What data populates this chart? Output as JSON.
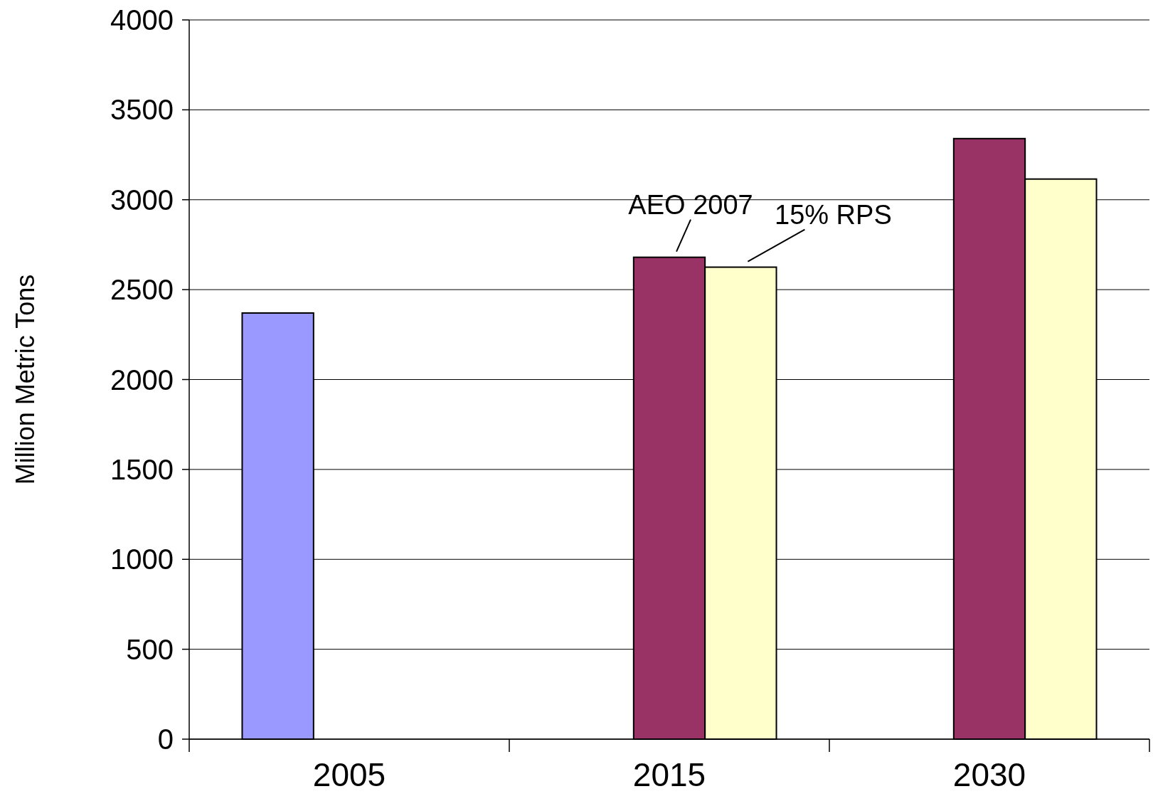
{
  "chart_data": {
    "type": "bar",
    "ylabel": "Million Metric Tons",
    "categories": [
      "2005",
      "2015",
      "2030"
    ],
    "series": [
      {
        "color": "#9999ff",
        "values": [
          2370,
          null,
          null
        ]
      },
      {
        "name": "AEO 2007",
        "color": "#993366",
        "values": [
          null,
          2680,
          3340
        ]
      },
      {
        "name": "15% RPS",
        "color": "#ffffcc",
        "values": [
          null,
          2625,
          3115
        ]
      }
    ],
    "ylim": [
      0,
      4000
    ],
    "yticks": [
      0,
      500,
      1000,
      1500,
      2000,
      2500,
      3000,
      3500,
      4000
    ],
    "grid": "y"
  }
}
